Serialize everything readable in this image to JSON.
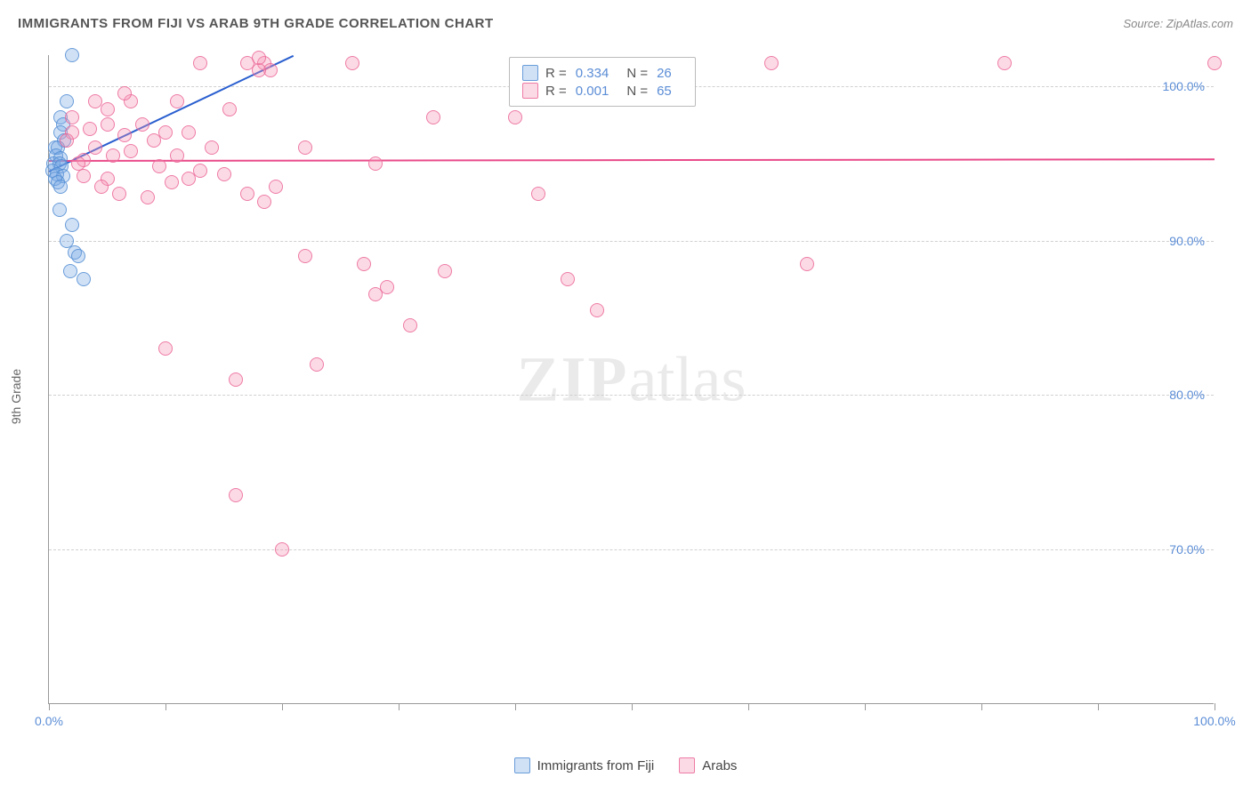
{
  "header": {
    "title": "IMMIGRANTS FROM FIJI VS ARAB 9TH GRADE CORRELATION CHART",
    "source": "Source: ZipAtlas.com"
  },
  "chart": {
    "type": "scatter",
    "ylabel": "9th Grade",
    "watermark_a": "ZIP",
    "watermark_b": "atlas",
    "background_color": "#ffffff",
    "grid_color": "#d0d0d0",
    "axis_color": "#999999",
    "tick_label_color": "#5b8dd6",
    "marker_radius": 8,
    "xlim": [
      0,
      100
    ],
    "ylim": [
      60,
      102
    ],
    "xticks": [
      0,
      10,
      20,
      30,
      40,
      50,
      60,
      70,
      80,
      90,
      100
    ],
    "xtick_labels": {
      "0": "0.0%",
      "100": "100.0%"
    },
    "yticks": [
      70,
      80,
      90,
      100
    ],
    "ytick_labels": {
      "70": "70.0%",
      "80": "80.0%",
      "90": "90.0%",
      "100": "100.0%"
    },
    "series": [
      {
        "id": "s1",
        "label": "Immigrants from Fiji",
        "fill_color": "rgba(120,170,230,0.35)",
        "stroke_color": "rgba(80,140,210,0.8)",
        "R": "0.334",
        "N": "26",
        "trend": {
          "x1": 0,
          "y1": 94.5,
          "x2": 21,
          "y2": 102,
          "color": "#2a5fcf",
          "width": 2
        },
        "points": [
          [
            2,
            102
          ],
          [
            1.5,
            99
          ],
          [
            1,
            98
          ],
          [
            1.2,
            97.5
          ],
          [
            1,
            97
          ],
          [
            1.3,
            96.5
          ],
          [
            0.5,
            96
          ],
          [
            0.8,
            96
          ],
          [
            0.6,
            95.5
          ],
          [
            1,
            95.3
          ],
          [
            0.4,
            95
          ],
          [
            0.9,
            95
          ],
          [
            1.1,
            94.8
          ],
          [
            0.3,
            94.5
          ],
          [
            0.7,
            94.3
          ],
          [
            1.2,
            94.2
          ],
          [
            0.5,
            94
          ],
          [
            0.8,
            93.8
          ],
          [
            1,
            93.5
          ],
          [
            2,
            91
          ],
          [
            1.5,
            90
          ],
          [
            2.2,
            89.2
          ],
          [
            2.5,
            89
          ],
          [
            3,
            87.5
          ],
          [
            1.8,
            88
          ],
          [
            0.9,
            92
          ]
        ]
      },
      {
        "id": "s2",
        "label": "Arabs",
        "fill_color": "rgba(245,150,180,0.35)",
        "stroke_color": "rgba(235,100,150,0.8)",
        "R": "0.001",
        "N": "65",
        "trend": {
          "x1": 0,
          "y1": 95.2,
          "x2": 100,
          "y2": 95.3,
          "color": "#e94b8a",
          "width": 2
        },
        "points": [
          [
            13,
            101.5
          ],
          [
            17,
            101.5
          ],
          [
            18.5,
            101.5
          ],
          [
            26,
            101.5
          ],
          [
            62,
            101.5
          ],
          [
            82,
            101.5
          ],
          [
            100,
            101.5
          ],
          [
            19,
            101
          ],
          [
            18,
            101
          ],
          [
            4,
            99
          ],
          [
            7,
            99
          ],
          [
            11,
            99
          ],
          [
            15.5,
            98.5
          ],
          [
            33,
            98
          ],
          [
            40,
            98
          ],
          [
            5,
            97.5
          ],
          [
            8,
            97.5
          ],
          [
            10,
            97
          ],
          [
            12,
            97
          ],
          [
            6.5,
            96.8
          ],
          [
            9,
            96.5
          ],
          [
            14,
            96
          ],
          [
            22,
            96
          ],
          [
            4,
            96
          ],
          [
            7,
            95.8
          ],
          [
            5.5,
            95.5
          ],
          [
            11,
            95.5
          ],
          [
            3,
            95.2
          ],
          [
            2.5,
            95
          ],
          [
            9.5,
            94.8
          ],
          [
            2,
            97
          ],
          [
            3.5,
            97.2
          ],
          [
            13,
            94.5
          ],
          [
            15,
            94.3
          ],
          [
            28,
            95
          ],
          [
            12,
            94
          ],
          [
            5,
            94
          ],
          [
            10.5,
            93.8
          ],
          [
            42,
            93
          ],
          [
            17,
            93
          ],
          [
            18.5,
            92.5
          ],
          [
            65,
            88.5
          ],
          [
            22,
            89
          ],
          [
            34,
            88
          ],
          [
            28,
            86.5
          ],
          [
            29,
            87
          ],
          [
            16,
            81
          ],
          [
            10,
            83
          ],
          [
            23,
            82
          ],
          [
            31,
            84.5
          ],
          [
            47,
            85.5
          ],
          [
            44.5,
            87.5
          ],
          [
            16,
            73.5
          ],
          [
            20,
            70
          ],
          [
            3,
            94.2
          ],
          [
            4.5,
            93.5
          ],
          [
            6,
            93
          ],
          [
            8.5,
            92.8
          ],
          [
            1.5,
            96.5
          ],
          [
            2,
            98
          ],
          [
            5,
            98.5
          ],
          [
            6.5,
            99.5
          ],
          [
            18,
            101.8
          ],
          [
            19.5,
            93.5
          ],
          [
            27,
            88.5
          ]
        ]
      }
    ]
  },
  "legend_top": {
    "R_label": "R =",
    "N_label": "N ="
  },
  "legend_bottom": {
    "items": [
      "Immigrants from Fiji",
      "Arabs"
    ]
  }
}
